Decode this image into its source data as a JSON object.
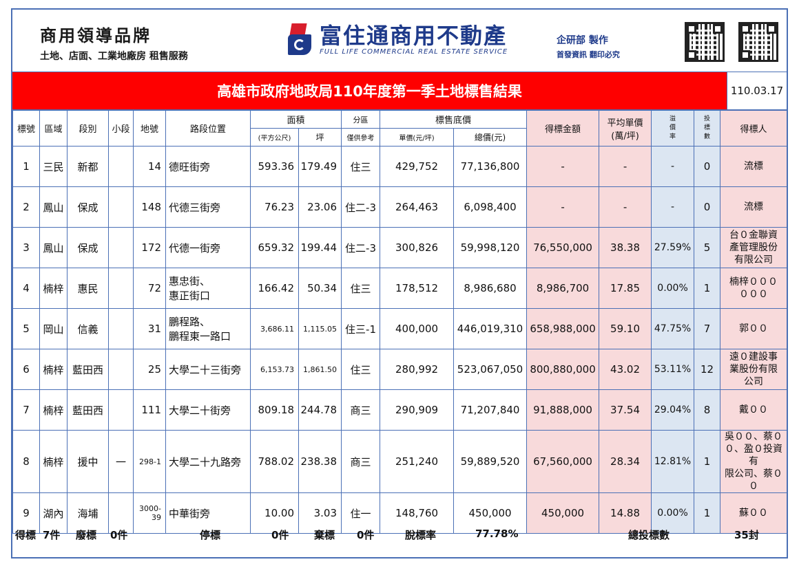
{
  "header": {
    "brand_title": "商用領導品牌",
    "brand_subtitle": "土地、店面、工業地廠房 租售服務",
    "company_zh": "富住通商用不動產",
    "company_en": "FULL LIFE COMMERCIAL REAL ESTATE SERVICE",
    "dept_line1": "企研部 製作",
    "dept_line2": "首發資訊 翻印必究"
  },
  "title_bar": {
    "title": "高雄市政府地政局110年度第一季土地標售結果",
    "date": "110.03.17"
  },
  "table": {
    "headers": {
      "no": "標號",
      "district": "區域",
      "section": "段別",
      "subsection": "小段",
      "lot": "地號",
      "location": "路段位置",
      "area": "面積",
      "area_sqm": "(平方公尺)",
      "area_ping": "坪",
      "zone": "分區",
      "zone_note": "僅供參考",
      "base_price": "標售底價",
      "unit_price": "單價(元/坪)",
      "total_price": "總價(元)",
      "winning_amount": "得標金額",
      "avg_unit_price": "平均單價",
      "avg_unit_price_unit": "(萬/坪)",
      "premium_1": "溢",
      "premium_2": "價",
      "premium_3": "率",
      "bids_1": "投",
      "bids_2": "標",
      "bids_3": "數",
      "winner": "得標人"
    },
    "rows": [
      {
        "no": "1",
        "district": "三民",
        "section": "新都",
        "subsection": "",
        "lot": "14",
        "location1": "德旺街旁",
        "location2": "",
        "area_sqm": "593.36",
        "area_ping": "179.49",
        "zone": "住三",
        "unit_price": "429,752",
        "total_price": "77,136,800",
        "winning_amount": "-",
        "avg_unit_price": "-",
        "premium": "-",
        "bids": "0",
        "winner1": "流標",
        "winner2": "",
        "winner3": ""
      },
      {
        "no": "2",
        "district": "鳳山",
        "section": "保成",
        "subsection": "",
        "lot": "148",
        "location1": "代德三街旁",
        "location2": "",
        "area_sqm": "76.23",
        "area_ping": "23.06",
        "zone": "住二-3",
        "unit_price": "264,463",
        "total_price": "6,098,400",
        "winning_amount": "-",
        "avg_unit_price": "-",
        "premium": "-",
        "bids": "0",
        "winner1": "流標",
        "winner2": "",
        "winner3": ""
      },
      {
        "no": "3",
        "district": "鳳山",
        "section": "保成",
        "subsection": "",
        "lot": "172",
        "location1": "代德一街旁",
        "location2": "",
        "area_sqm": "659.32",
        "area_ping": "199.44",
        "zone": "住二-3",
        "unit_price": "300,826",
        "total_price": "59,998,120",
        "winning_amount": "76,550,000",
        "avg_unit_price": "38.38",
        "premium": "27.59%",
        "bids": "5",
        "winner1": "台０金聯資",
        "winner2": "產管理股份",
        "winner3": "有限公司"
      },
      {
        "no": "4",
        "district": "楠梓",
        "section": "惠民",
        "subsection": "",
        "lot": "72",
        "location1": "惠忠街、",
        "location2": "惠正街口",
        "area_sqm": "166.42",
        "area_ping": "50.34",
        "zone": "住三",
        "unit_price": "178,512",
        "total_price": "8,986,680",
        "winning_amount": "8,986,700",
        "avg_unit_price": "17.85",
        "premium": "0.00%",
        "bids": "1",
        "winner1": "楠梓０００",
        "winner2": "０００",
        "winner3": ""
      },
      {
        "no": "5",
        "district": "岡山",
        "section": "信義",
        "subsection": "",
        "lot": "31",
        "location1": "鵬程路、",
        "location2": "鵬程東一路口",
        "area_sqm": "3,686.11",
        "area_ping": "1,115.05",
        "zone": "住三-1",
        "unit_price": "400,000",
        "total_price": "446,019,310",
        "winning_amount": "658,988,000",
        "avg_unit_price": "59.10",
        "premium": "47.75%",
        "bids": "7",
        "winner1": "郭００",
        "winner2": "",
        "winner3": ""
      },
      {
        "no": "6",
        "district": "楠梓",
        "section": "藍田西",
        "subsection": "",
        "lot": "25",
        "location1": "大學二十三街旁",
        "location2": "",
        "area_sqm": "6,153.73",
        "area_ping": "1,861.50",
        "zone": "住三",
        "unit_price": "280,992",
        "total_price": "523,067,050",
        "winning_amount": "800,880,000",
        "avg_unit_price": "43.02",
        "premium": "53.11%",
        "bids": "12",
        "winner1": "遠０建設事",
        "winner2": "業股份有限",
        "winner3": "公司"
      },
      {
        "no": "7",
        "district": "楠梓",
        "section": "藍田西",
        "subsection": "",
        "lot": "111",
        "location1": "大學二十街旁",
        "location2": "",
        "area_sqm": "809.18",
        "area_ping": "244.78",
        "zone": "商三",
        "unit_price": "290,909",
        "total_price": "71,207,840",
        "winning_amount": "91,888,000",
        "avg_unit_price": "37.54",
        "premium": "29.04%",
        "bids": "8",
        "winner1": "戴００",
        "winner2": "",
        "winner3": ""
      },
      {
        "no": "8",
        "district": "楠梓",
        "section": "援中",
        "subsection": "一",
        "lot": "298-1",
        "location1": "大學二十九路旁",
        "location2": "",
        "area_sqm": "788.02",
        "area_ping": "238.38",
        "zone": "商三",
        "unit_price": "251,240",
        "total_price": "59,889,520",
        "winning_amount": "67,560,000",
        "avg_unit_price": "28.34",
        "premium": "12.81%",
        "bids": "1",
        "winner1": "吳００、蔡０",
        "winner2": "０、盈０投資有",
        "winner3": "限公司、蔡００"
      },
      {
        "no": "9",
        "district": "湖內",
        "section": "海埔",
        "subsection": "",
        "lot": "3000-39",
        "location1": "中華街旁",
        "location2": "",
        "area_sqm": "10.00",
        "area_ping": "3.03",
        "zone": "住一",
        "unit_price": "148,760",
        "total_price": "450,000",
        "winning_amount": "450,000",
        "avg_unit_price": "14.88",
        "premium": "0.00%",
        "bids": "1",
        "winner1": "蘇００",
        "winner2": "",
        "winner3": ""
      }
    ]
  },
  "footer": {
    "awarded_label": "得標",
    "awarded_value": "7件",
    "void_label": "廢標",
    "void_value": "0件",
    "suspended_label": "停標",
    "suspended_value": "0件",
    "abandoned_label": "棄標",
    "abandoned_value": "0件",
    "sold_rate_label": "脫標率",
    "sold_rate_value": "77.78%",
    "total_bids_label": "總投標數",
    "total_bids_value": "35封"
  },
  "colors": {
    "title_bar": "#fe0000",
    "border": "#4a6fb5",
    "pink_cell": "#f8dadb",
    "blue_cell": "#dce6f2",
    "brand_blue": "#1e3a8a"
  }
}
